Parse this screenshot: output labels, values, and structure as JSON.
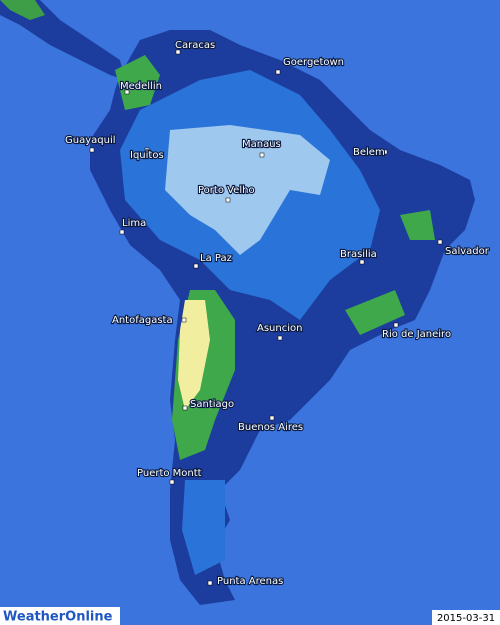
{
  "map": {
    "cities": [
      {
        "label": "Caracas"
      },
      {
        "label": "Goergetown"
      },
      {
        "label": "Medellin"
      },
      {
        "label": "Guayaquil"
      },
      {
        "label": "Iquitos"
      },
      {
        "label": "Manaus"
      },
      {
        "label": "Belem"
      },
      {
        "label": "Porto Velho"
      },
      {
        "label": "Lima"
      },
      {
        "label": "Salvador"
      },
      {
        "label": "La Paz"
      },
      {
        "label": "Brasilia"
      },
      {
        "label": "Antofagasta"
      },
      {
        "label": "Asuncion"
      },
      {
        "label": "Rio de Janeiro"
      },
      {
        "label": "Santiago"
      },
      {
        "label": "Buenos Aires"
      },
      {
        "label": "Puerto Montt"
      },
      {
        "label": "Punta Arenas"
      }
    ],
    "logo": "WeatherOnline",
    "date": "2015-03-31"
  }
}
